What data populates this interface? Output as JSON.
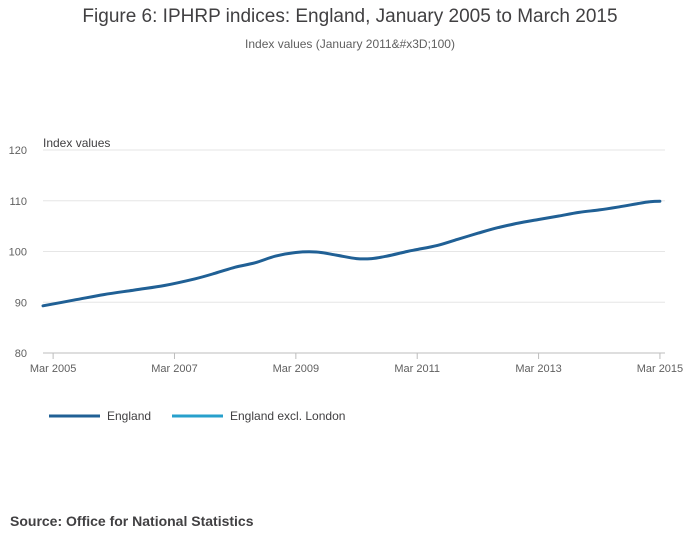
{
  "chart_data": {
    "type": "line",
    "title": "Figure 6: IPHRP indices: England, January 2005 to March 2015",
    "subtitle": "Index values (January 2011&#x3D;100)",
    "ylabel": "Index values",
    "xlabel": "",
    "ylim": [
      80,
      120
    ],
    "yticks": [
      80,
      90,
      100,
      110,
      120
    ],
    "xticks": [
      "Mar 2005",
      "Mar 2007",
      "Mar 2009",
      "Mar 2011",
      "Mar 2013",
      "Mar 2015"
    ],
    "xtick_months": [
      2,
      26,
      50,
      74,
      98,
      122
    ],
    "grid": true,
    "legend": "bottom-left",
    "series": [
      {
        "name": "England",
        "color": "#206095",
        "month_index": [
          0,
          6,
          12,
          18,
          24,
          30,
          34,
          38,
          42,
          46,
          50,
          54,
          58,
          62,
          65,
          68,
          72,
          74,
          78,
          82,
          86,
          90,
          94,
          98,
          102,
          106,
          110,
          114,
          118,
          120,
          122
        ],
        "values": [
          89.3,
          90.4,
          91.5,
          92.4,
          93.3,
          94.6,
          95.7,
          96.9,
          97.8,
          99.1,
          99.8,
          99.9,
          99.3,
          98.6,
          98.6,
          99.1,
          100.0,
          100.4,
          101.2,
          102.4,
          103.6,
          104.7,
          105.6,
          106.3,
          107.0,
          107.7,
          108.2,
          108.8,
          109.5,
          109.8,
          109.9
        ]
      },
      {
        "name": "England excl. London",
        "color": "#27a0cc",
        "month_index": [],
        "values": []
      }
    ]
  },
  "source": "Source: Office for National Statistics"
}
